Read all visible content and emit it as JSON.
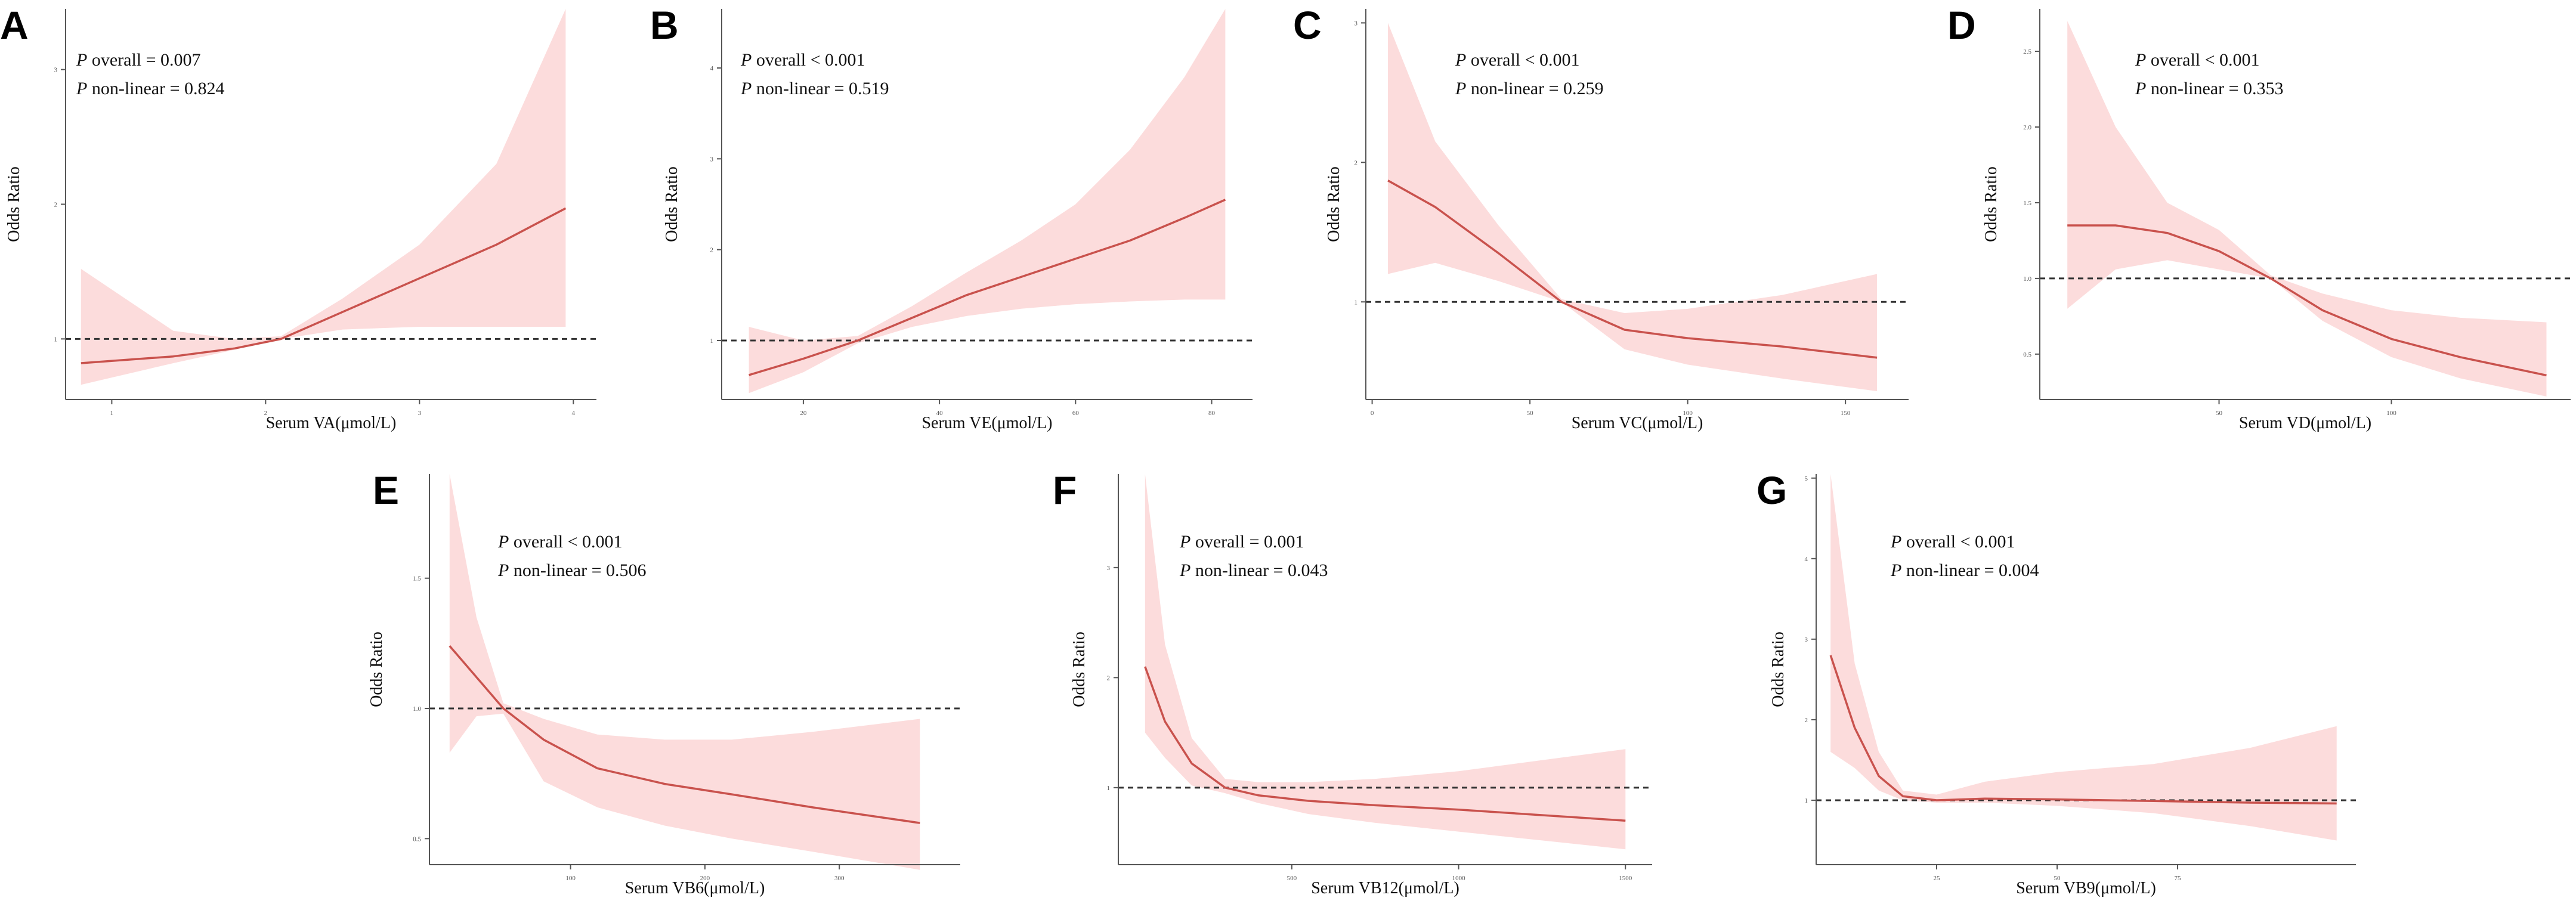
{
  "figure": {
    "background": "#ffffff",
    "curve_color": "#c9524d",
    "band_color": "#fcdcdc"
  },
  "chart_data": [
    {
      "type": "line",
      "panel": "A",
      "xlabel": "Serum VA(μmol/L)",
      "ylabel": "Odds Ratio",
      "annotations": [
        {
          "label": "P",
          "text": " overall = 0.007"
        },
        {
          "label": "P",
          "text": " non-linear = 0.824"
        }
      ],
      "xlim": [
        0.7,
        4.15
      ],
      "ylim": [
        0.55,
        3.45
      ],
      "xticks": [
        1,
        2,
        3,
        4
      ],
      "xticklabels": [
        "1",
        "2",
        "3",
        "4"
      ],
      "yticks": [
        1,
        2,
        3
      ],
      "yticklabels": [
        "1",
        "2",
        "3"
      ],
      "reference": 1,
      "x": [
        0.8,
        1.4,
        1.8,
        2.1,
        2.5,
        3.0,
        3.5,
        3.95
      ],
      "y": [
        0.82,
        0.87,
        0.93,
        1.0,
        1.2,
        1.45,
        1.7,
        1.97
      ],
      "lower": [
        0.66,
        0.82,
        0.92,
        1.0,
        1.07,
        1.09,
        1.09,
        1.09
      ],
      "upper": [
        1.52,
        1.06,
        1.0,
        1.02,
        1.3,
        1.7,
        2.3,
        3.45
      ]
    },
    {
      "type": "line",
      "panel": "B",
      "xlabel": "Serum VE(μmol/L)",
      "ylabel": "Odds Ratio",
      "annotations": [
        {
          "label": "P",
          "text": " overall < 0.001"
        },
        {
          "label": "P",
          "text": " non-linear = 0.519"
        }
      ],
      "xlim": [
        8,
        86
      ],
      "ylim": [
        0.35,
        4.65
      ],
      "xticks": [
        20,
        40,
        60,
        80
      ],
      "xticklabels": [
        "20",
        "40",
        "60",
        "80"
      ],
      "yticks": [
        1,
        2,
        3,
        4
      ],
      "yticklabels": [
        "1",
        "2",
        "3",
        "4"
      ],
      "reference": 1,
      "x": [
        12,
        20,
        28,
        36,
        44,
        52,
        60,
        68,
        76,
        82
      ],
      "y": [
        0.62,
        0.8,
        1.0,
        1.25,
        1.5,
        1.7,
        1.9,
        2.1,
        2.35,
        2.55
      ],
      "lower": [
        0.42,
        0.65,
        0.97,
        1.15,
        1.27,
        1.35,
        1.4,
        1.43,
        1.45,
        1.45
      ],
      "upper": [
        1.15,
        1.0,
        1.05,
        1.38,
        1.75,
        2.1,
        2.5,
        3.1,
        3.9,
        4.65
      ]
    },
    {
      "type": "line",
      "panel": "C",
      "xlabel": "Serum VC(μmol/L)",
      "ylabel": "Odds Ratio",
      "annotations": [
        {
          "label": "P",
          "text": " overall < 0.001"
        },
        {
          "label": "P",
          "text": " non-linear = 0.259"
        }
      ],
      "xlim": [
        -2,
        170
      ],
      "ylim": [
        0.3,
        3.1
      ],
      "xticks": [
        0,
        50,
        100,
        150
      ],
      "xticklabels": [
        "0",
        "50",
        "100",
        "150"
      ],
      "yticks": [
        1,
        2,
        3
      ],
      "yticklabels": [
        "1",
        "2",
        "3"
      ],
      "reference": 1,
      "x": [
        5,
        20,
        40,
        60,
        80,
        100,
        130,
        160
      ],
      "y": [
        1.87,
        1.68,
        1.35,
        1.0,
        0.8,
        0.74,
        0.68,
        0.6
      ],
      "lower": [
        1.2,
        1.28,
        1.15,
        1.0,
        0.66,
        0.55,
        0.45,
        0.36
      ],
      "upper": [
        3.0,
        2.15,
        1.55,
        1.02,
        0.92,
        0.95,
        1.05,
        1.2
      ]
    },
    {
      "type": "line",
      "panel": "D",
      "xlabel": "Serum VD(μmol/L)",
      "ylabel": "Odds Ratio",
      "annotations": [
        {
          "label": "P",
          "text": " overall < 0.001"
        },
        {
          "label": "P",
          "text": " non-linear = 0.353"
        }
      ],
      "xlim": [
        -2,
        152
      ],
      "ylim": [
        0.2,
        2.78
      ],
      "xticks": [
        50,
        100
      ],
      "xticklabels": [
        "50",
        "100"
      ],
      "yticks": [
        0.5,
        1.0,
        1.5,
        2.0,
        2.5
      ],
      "yticklabels": [
        "0.5",
        "1.0",
        "1.5",
        "2.0",
        "2.5"
      ],
      "reference": 1,
      "x": [
        6,
        20,
        35,
        50,
        65,
        80,
        100,
        120,
        145
      ],
      "y": [
        1.35,
        1.35,
        1.3,
        1.18,
        1.0,
        0.79,
        0.6,
        0.48,
        0.36
      ],
      "lower": [
        0.8,
        1.06,
        1.12,
        1.06,
        1.0,
        0.72,
        0.48,
        0.34,
        0.22
      ],
      "upper": [
        2.7,
        2.0,
        1.5,
        1.32,
        1.02,
        0.9,
        0.79,
        0.74,
        0.71
      ]
    },
    {
      "type": "line",
      "panel": "E",
      "xlabel": "Serum VB6(μmol/L)",
      "ylabel": "Odds Ratio",
      "annotations": [
        {
          "label": "P",
          "text": " overall < 0.001"
        },
        {
          "label": "P",
          "text": " non-linear = 0.506"
        }
      ],
      "xlim": [
        -5,
        390
      ],
      "ylim": [
        0.4,
        1.9
      ],
      "xticks": [
        100,
        200,
        300
      ],
      "xticklabels": [
        "100",
        "200",
        "300"
      ],
      "yticks": [
        0.5,
        1.0,
        1.5
      ],
      "yticklabels": [
        "0.5",
        "1.0",
        "1.5"
      ],
      "reference": 1,
      "x": [
        10,
        30,
        50,
        80,
        120,
        170,
        220,
        280,
        360
      ],
      "y": [
        1.24,
        1.12,
        1.0,
        0.88,
        0.77,
        0.71,
        0.67,
        0.62,
        0.56
      ],
      "lower": [
        0.83,
        0.97,
        0.98,
        0.72,
        0.62,
        0.55,
        0.5,
        0.45,
        0.38
      ],
      "upper": [
        1.9,
        1.35,
        1.02,
        0.96,
        0.9,
        0.88,
        0.88,
        0.91,
        0.96
      ]
    },
    {
      "type": "line",
      "panel": "F",
      "xlabel": "Serum VB12(μmol/L)",
      "ylabel": "Odds Ratio",
      "annotations": [
        {
          "label": "P",
          "text": " overall = 0.001"
        },
        {
          "label": "P",
          "text": " non-linear = 0.043"
        }
      ],
      "xlim": [
        -20,
        1580
      ],
      "ylim": [
        0.3,
        3.85
      ],
      "xticks": [
        500,
        1000,
        1500
      ],
      "xticklabels": [
        "500",
        "1000",
        "1500"
      ],
      "yticks": [
        1,
        2,
        3
      ],
      "yticklabels": [
        "1",
        "2",
        "3"
      ],
      "reference": 1,
      "x": [
        60,
        120,
        200,
        300,
        400,
        550,
        750,
        1000,
        1250,
        1500
      ],
      "y": [
        2.1,
        1.6,
        1.22,
        1.0,
        0.93,
        0.88,
        0.84,
        0.8,
        0.75,
        0.7
      ],
      "lower": [
        1.5,
        1.27,
        1.02,
        0.95,
        0.86,
        0.76,
        0.68,
        0.6,
        0.52,
        0.44
      ],
      "upper": [
        3.85,
        2.3,
        1.45,
        1.08,
        1.05,
        1.05,
        1.08,
        1.15,
        1.25,
        1.35
      ]
    },
    {
      "type": "line",
      "panel": "G",
      "xlabel": "Serum VB9(μmol/L)",
      "ylabel": "Odds Ratio",
      "annotations": [
        {
          "label": "P",
          "text": " overall < 0.001"
        },
        {
          "label": "P",
          "text": " non-linear = 0.004"
        }
      ],
      "xlim": [
        0,
        112
      ],
      "ylim": [
        0.2,
        5.05
      ],
      "xticks": [
        25,
        50,
        75
      ],
      "xticklabels": [
        "25",
        "50",
        "75"
      ],
      "yticks": [
        1,
        2,
        3,
        4,
        5
      ],
      "yticklabels": [
        "1",
        "2",
        "3",
        "4",
        "5"
      ],
      "reference": 1,
      "x": [
        3,
        8,
        13,
        18,
        25,
        35,
        50,
        70,
        90,
        108
      ],
      "y": [
        2.8,
        1.9,
        1.3,
        1.05,
        1.0,
        1.02,
        1.01,
        0.99,
        0.97,
        0.96
      ],
      "lower": [
        1.6,
        1.4,
        1.12,
        1.0,
        0.97,
        0.97,
        0.93,
        0.84,
        0.68,
        0.5
      ],
      "upper": [
        5.05,
        2.7,
        1.6,
        1.12,
        1.07,
        1.23,
        1.35,
        1.45,
        1.65,
        1.92
      ]
    }
  ]
}
